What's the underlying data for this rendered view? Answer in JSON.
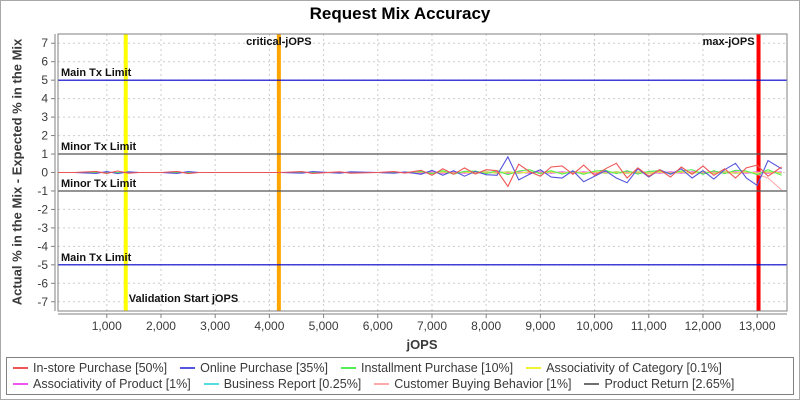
{
  "title": "Request Mix Accuracy",
  "axes": {
    "x_label": "jOPS",
    "y_label": "Actual % in the Mix - Expected % in the Mix"
  },
  "chart_data": {
    "type": "line",
    "title": "Request Mix Accuracy",
    "xlabel": "jOPS",
    "ylabel": "Actual % in the Mix - Expected % in the Mix",
    "grid": true,
    "legend_position": "bottom",
    "xlim": [
      100,
      13550
    ],
    "ylim": [
      -7.5,
      7.5
    ],
    "xticks": [
      1000,
      2000,
      3000,
      4000,
      5000,
      6000,
      7000,
      8000,
      9000,
      10000,
      11000,
      12000,
      13000
    ],
    "yticks": [
      -7,
      -6,
      -5,
      -4,
      -3,
      -2,
      -1,
      0,
      1,
      2,
      3,
      4,
      5,
      6,
      7
    ],
    "colors": {
      "grid": "#cccccc",
      "plot_border": "#808080",
      "tick_label": "#3a3a3a",
      "annotation": "#111111"
    },
    "limit_lines": [
      {
        "label": "Main Tx Limit",
        "y": 5,
        "color": "#0000cc"
      },
      {
        "label": "Main Tx Limit",
        "y": -5,
        "color": "#0000cc"
      },
      {
        "label": "Minor Tx Limit",
        "y": 1,
        "color": "#555555"
      },
      {
        "label": "Minor Tx Limit",
        "y": -1,
        "color": "#555555"
      }
    ],
    "marker_lines": [
      {
        "label": "Validation Start jOPS",
        "x": 1350,
        "color": "#ffff00",
        "label_anchor": "bottom-start"
      },
      {
        "label": "critical-jOPS",
        "x": 4175,
        "color": "#ffa500",
        "label_anchor": "top-middle"
      },
      {
        "label": "max-jOPS",
        "x": 13025,
        "color": "#ff0000",
        "label_anchor": "top-end"
      }
    ],
    "x": [
      100,
      400,
      800,
      1000,
      1200,
      1400,
      1600,
      2000,
      2300,
      2500,
      2700,
      3200,
      3700,
      4200,
      4600,
      4800,
      5300,
      5500,
      6000,
      6300,
      6500,
      6800,
      7000,
      7200,
      7400,
      7600,
      7800,
      8000,
      8200,
      8400,
      8600,
      8800,
      9000,
      9200,
      9400,
      9600,
      9800,
      10000,
      10200,
      10400,
      10600,
      10800,
      11000,
      11200,
      11400,
      11600,
      11800,
      12000,
      12200,
      12400,
      12600,
      12800,
      13000,
      13200,
      13450
    ],
    "series": [
      {
        "name": "In-store Purchase [50%]",
        "color": "#ee5555",
        "values": [
          0,
          0,
          0.06,
          -0.05,
          0.08,
          -0.04,
          0,
          0,
          0.06,
          -0.06,
          0,
          0,
          0,
          0,
          0.05,
          -0.05,
          0.04,
          -0.04,
          0,
          0.05,
          -0.03,
          0.12,
          -0.15,
          0.2,
          -0.1,
          0.25,
          -0.08,
          0.15,
          0.1,
          -0.75,
          0.45,
          0.05,
          -0.2,
          0.3,
          0.35,
          -0.1,
          0.4,
          -0.15,
          0.2,
          0.5,
          -0.3,
          0.25,
          -0.2,
          0.15,
          -0.25,
          0.3,
          -0.1,
          0.35,
          -0.15,
          0.2,
          -0.3,
          0.25,
          0.4,
          -0.2,
          0.3
        ]
      },
      {
        "name": "Online Purchase [35%]",
        "color": "#5555dd",
        "values": [
          0,
          0,
          -0.05,
          0.05,
          -0.06,
          0.04,
          0,
          0,
          -0.05,
          0.05,
          0,
          0,
          0,
          0,
          -0.04,
          0.05,
          -0.04,
          0.04,
          0,
          -0.04,
          0.03,
          -0.1,
          0.12,
          -0.15,
          0.1,
          -0.2,
          0.06,
          -0.12,
          -0.15,
          0.85,
          -0.4,
          -0.1,
          0.15,
          -0.25,
          -0.3,
          0.1,
          -0.5,
          -0.2,
          0.1,
          -0.3,
          -0.55,
          0.2,
          -0.25,
          0.15,
          -0.1,
          0.2,
          -0.3,
          0.1,
          -0.35,
          0.15,
          0.5,
          -0.3,
          -0.7,
          0.65,
          0.2
        ]
      },
      {
        "name": "Installment Purchase [10%]",
        "color": "#55ee55",
        "values": [
          0,
          0,
          0,
          0,
          0,
          0,
          0,
          0,
          0,
          0,
          0,
          0,
          0,
          0,
          0,
          0,
          0,
          0,
          0,
          0,
          0,
          0.06,
          -0.06,
          0.1,
          -0.08,
          0.06,
          0.08,
          -0.06,
          0.1,
          -0.12,
          0.08,
          0.15,
          -0.06,
          0.1,
          -0.08,
          0.06,
          -0.1,
          0.08,
          0.12,
          -0.06,
          0.1,
          -0.08,
          0.06,
          0.1,
          -0.06,
          0.08,
          0.15,
          -0.1,
          0.1,
          -0.06,
          0.12,
          0.08,
          -0.12,
          0.15,
          -0.15
        ]
      },
      {
        "name": "Associativity of Category [0.1%]",
        "color": "#f2f235",
        "values": [
          0,
          0,
          0,
          0,
          0,
          0,
          0,
          0,
          0,
          0,
          0,
          0,
          0,
          0,
          0,
          0,
          0,
          0,
          0,
          0,
          0,
          0.03,
          -0.03,
          0.03,
          -0.03,
          0.03,
          -0.03,
          0.03,
          -0.03,
          0.03,
          -0.03,
          0.03,
          -0.03,
          0.03,
          -0.03,
          0.03,
          -0.03,
          0.03,
          -0.03,
          0.03,
          -0.03,
          0.03,
          -0.03,
          0.03,
          -0.03,
          0.03,
          -0.03,
          0.03,
          -0.03,
          0.03,
          -0.03,
          0.03,
          -0.03,
          0.03,
          -0.03
        ]
      },
      {
        "name": "Associativity of Product [1%]",
        "color": "#ee55ee",
        "values": [
          0,
          0,
          0,
          0,
          0,
          0,
          0,
          0,
          0,
          0,
          0,
          0,
          0,
          0,
          0,
          0,
          0,
          0,
          0,
          0,
          0,
          -0.04,
          0.04,
          -0.04,
          0.04,
          -0.04,
          0.04,
          -0.04,
          0.04,
          -0.04,
          0.04,
          -0.04,
          0.04,
          -0.04,
          0.04,
          -0.04,
          0.04,
          -0.04,
          0.04,
          -0.04,
          0.04,
          -0.04,
          0.04,
          -0.04,
          0.04,
          -0.04,
          0.04,
          -0.04,
          0.04,
          -0.04,
          0.04,
          -0.04,
          0.04,
          -0.04,
          0.04
        ]
      },
      {
        "name": "Business Report [0.25%]",
        "color": "#55dddd",
        "values": [
          0,
          0,
          0,
          0,
          0,
          0,
          0,
          0,
          0,
          0,
          0,
          0,
          0,
          0,
          0,
          0,
          0,
          0,
          0,
          0,
          0,
          0.05,
          -0.05,
          0.05,
          -0.05,
          0.05,
          -0.05,
          0.05,
          -0.05,
          0.05,
          -0.05,
          0.05,
          -0.05,
          0.05,
          -0.05,
          0.05,
          -0.05,
          0.05,
          -0.05,
          0.05,
          -0.05,
          0.05,
          -0.05,
          0.05,
          -0.05,
          0.05,
          -0.05,
          0.05,
          -0.05,
          0.05,
          -0.05,
          0.05,
          -0.05,
          0.05,
          -0.05
        ]
      },
      {
        "name": "Customer Buying Behavior [1%]",
        "color": "#ffaaaa",
        "values": [
          0,
          0,
          0,
          0,
          0,
          0,
          0,
          0,
          0,
          0,
          0,
          0,
          0,
          0,
          0,
          0,
          0,
          0,
          0,
          0,
          0,
          0.06,
          -0.06,
          0.06,
          -0.06,
          0.06,
          -0.06,
          0.06,
          -0.06,
          0.06,
          -0.06,
          0.06,
          -0.06,
          0.06,
          -0.06,
          0.06,
          -0.06,
          0.06,
          -0.06,
          0.06,
          -0.06,
          0.06,
          -0.06,
          0.06,
          -0.06,
          0.06,
          -0.06,
          0.06,
          -0.06,
          0.06,
          -0.06,
          0.06,
          -0.1,
          -0.3,
          -0.95
        ]
      },
      {
        "name": "Product Return [2.65%]",
        "color": "#6f6f6f",
        "values": [
          0,
          0,
          0,
          0,
          0,
          0,
          0,
          0,
          0,
          0,
          0,
          0,
          0,
          0,
          0,
          0,
          0,
          0,
          0,
          0,
          0,
          -0.03,
          0.03,
          -0.03,
          0.03,
          -0.03,
          0.03,
          -0.03,
          0.03,
          -0.03,
          0.03,
          -0.03,
          0.03,
          -0.03,
          0.03,
          -0.03,
          0.03,
          -0.03,
          0.03,
          -0.03,
          0.03,
          -0.03,
          0.03,
          -0.03,
          0.03,
          -0.03,
          0.03,
          -0.03,
          0.03,
          -0.03,
          0.03,
          -0.03,
          0.03,
          -0.03,
          0.03
        ]
      }
    ]
  }
}
